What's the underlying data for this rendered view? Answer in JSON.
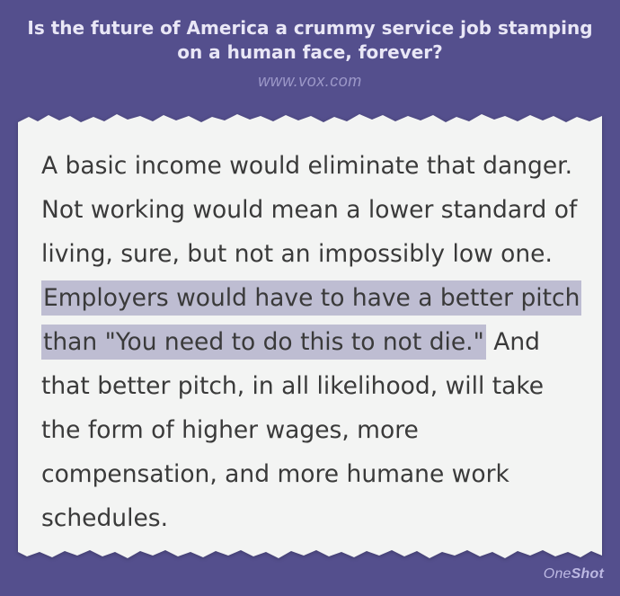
{
  "header": {
    "headline": "Is the future of America a crummy service job stamping on a human face, forever?",
    "source_url": "www.vox.com"
  },
  "excerpt": {
    "text_before": "A basic income would eliminate that danger. Not working would mean a lower standard of living, sure, but not an impossibly low one.",
    "text_highlighted": "Employers would have to have a better pitch than \"You need to do this to not die.\"",
    "text_after": "And that better pitch, in all likelihood, will take the form of higher wages, more compensation, and more humane work schedules."
  },
  "brand": {
    "name_light": "One",
    "name_bold": "Shot"
  },
  "colors": {
    "background": "#544f8d",
    "paper": "#f3f4f3",
    "highlight": "#bebdd2",
    "text": "#3a3a3a"
  }
}
